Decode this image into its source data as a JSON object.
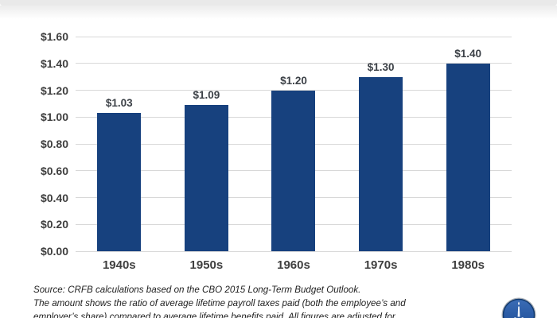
{
  "chart_data": {
    "type": "bar",
    "title": "",
    "categories": [
      "1940s",
      "1950s",
      "1960s",
      "1970s",
      "1980s"
    ],
    "values": [
      1.03,
      1.09,
      1.2,
      1.3,
      1.4
    ],
    "bar_labels": [
      "$1.03",
      "$1.09",
      "$1.20",
      "$1.30",
      "$1.40"
    ],
    "y_ticks": [
      "$1.60",
      "$1.40",
      "$1.20",
      "$1.00",
      "$0.80",
      "$0.60",
      "$0.40",
      "$0.20",
      "$0.00"
    ],
    "ylim": [
      0,
      1.6
    ],
    "xlabel": "",
    "ylabel": "",
    "grid": true,
    "legend": "none",
    "bar_color": "#17417E",
    "gridline_color": "#D8D8D8",
    "label_color": "#3F3F3F"
  },
  "footer": {
    "source_line": "Source: CRFB calculations based on the CBO 2015 Long-Term Budget Outlook.",
    "note_line1": "The amount shows the ratio of average lifetime payroll taxes paid (both the employee’s and",
    "note_line2": "employer’s share) compared to average lifetime benefits paid. All figures are adjusted for"
  },
  "logo": {
    "ring_color": "#AEB3B9",
    "fill_top_color": "#3A6CB5",
    "fill_bottom_color": "#1D4C96",
    "outline_color": "#123A6E"
  }
}
